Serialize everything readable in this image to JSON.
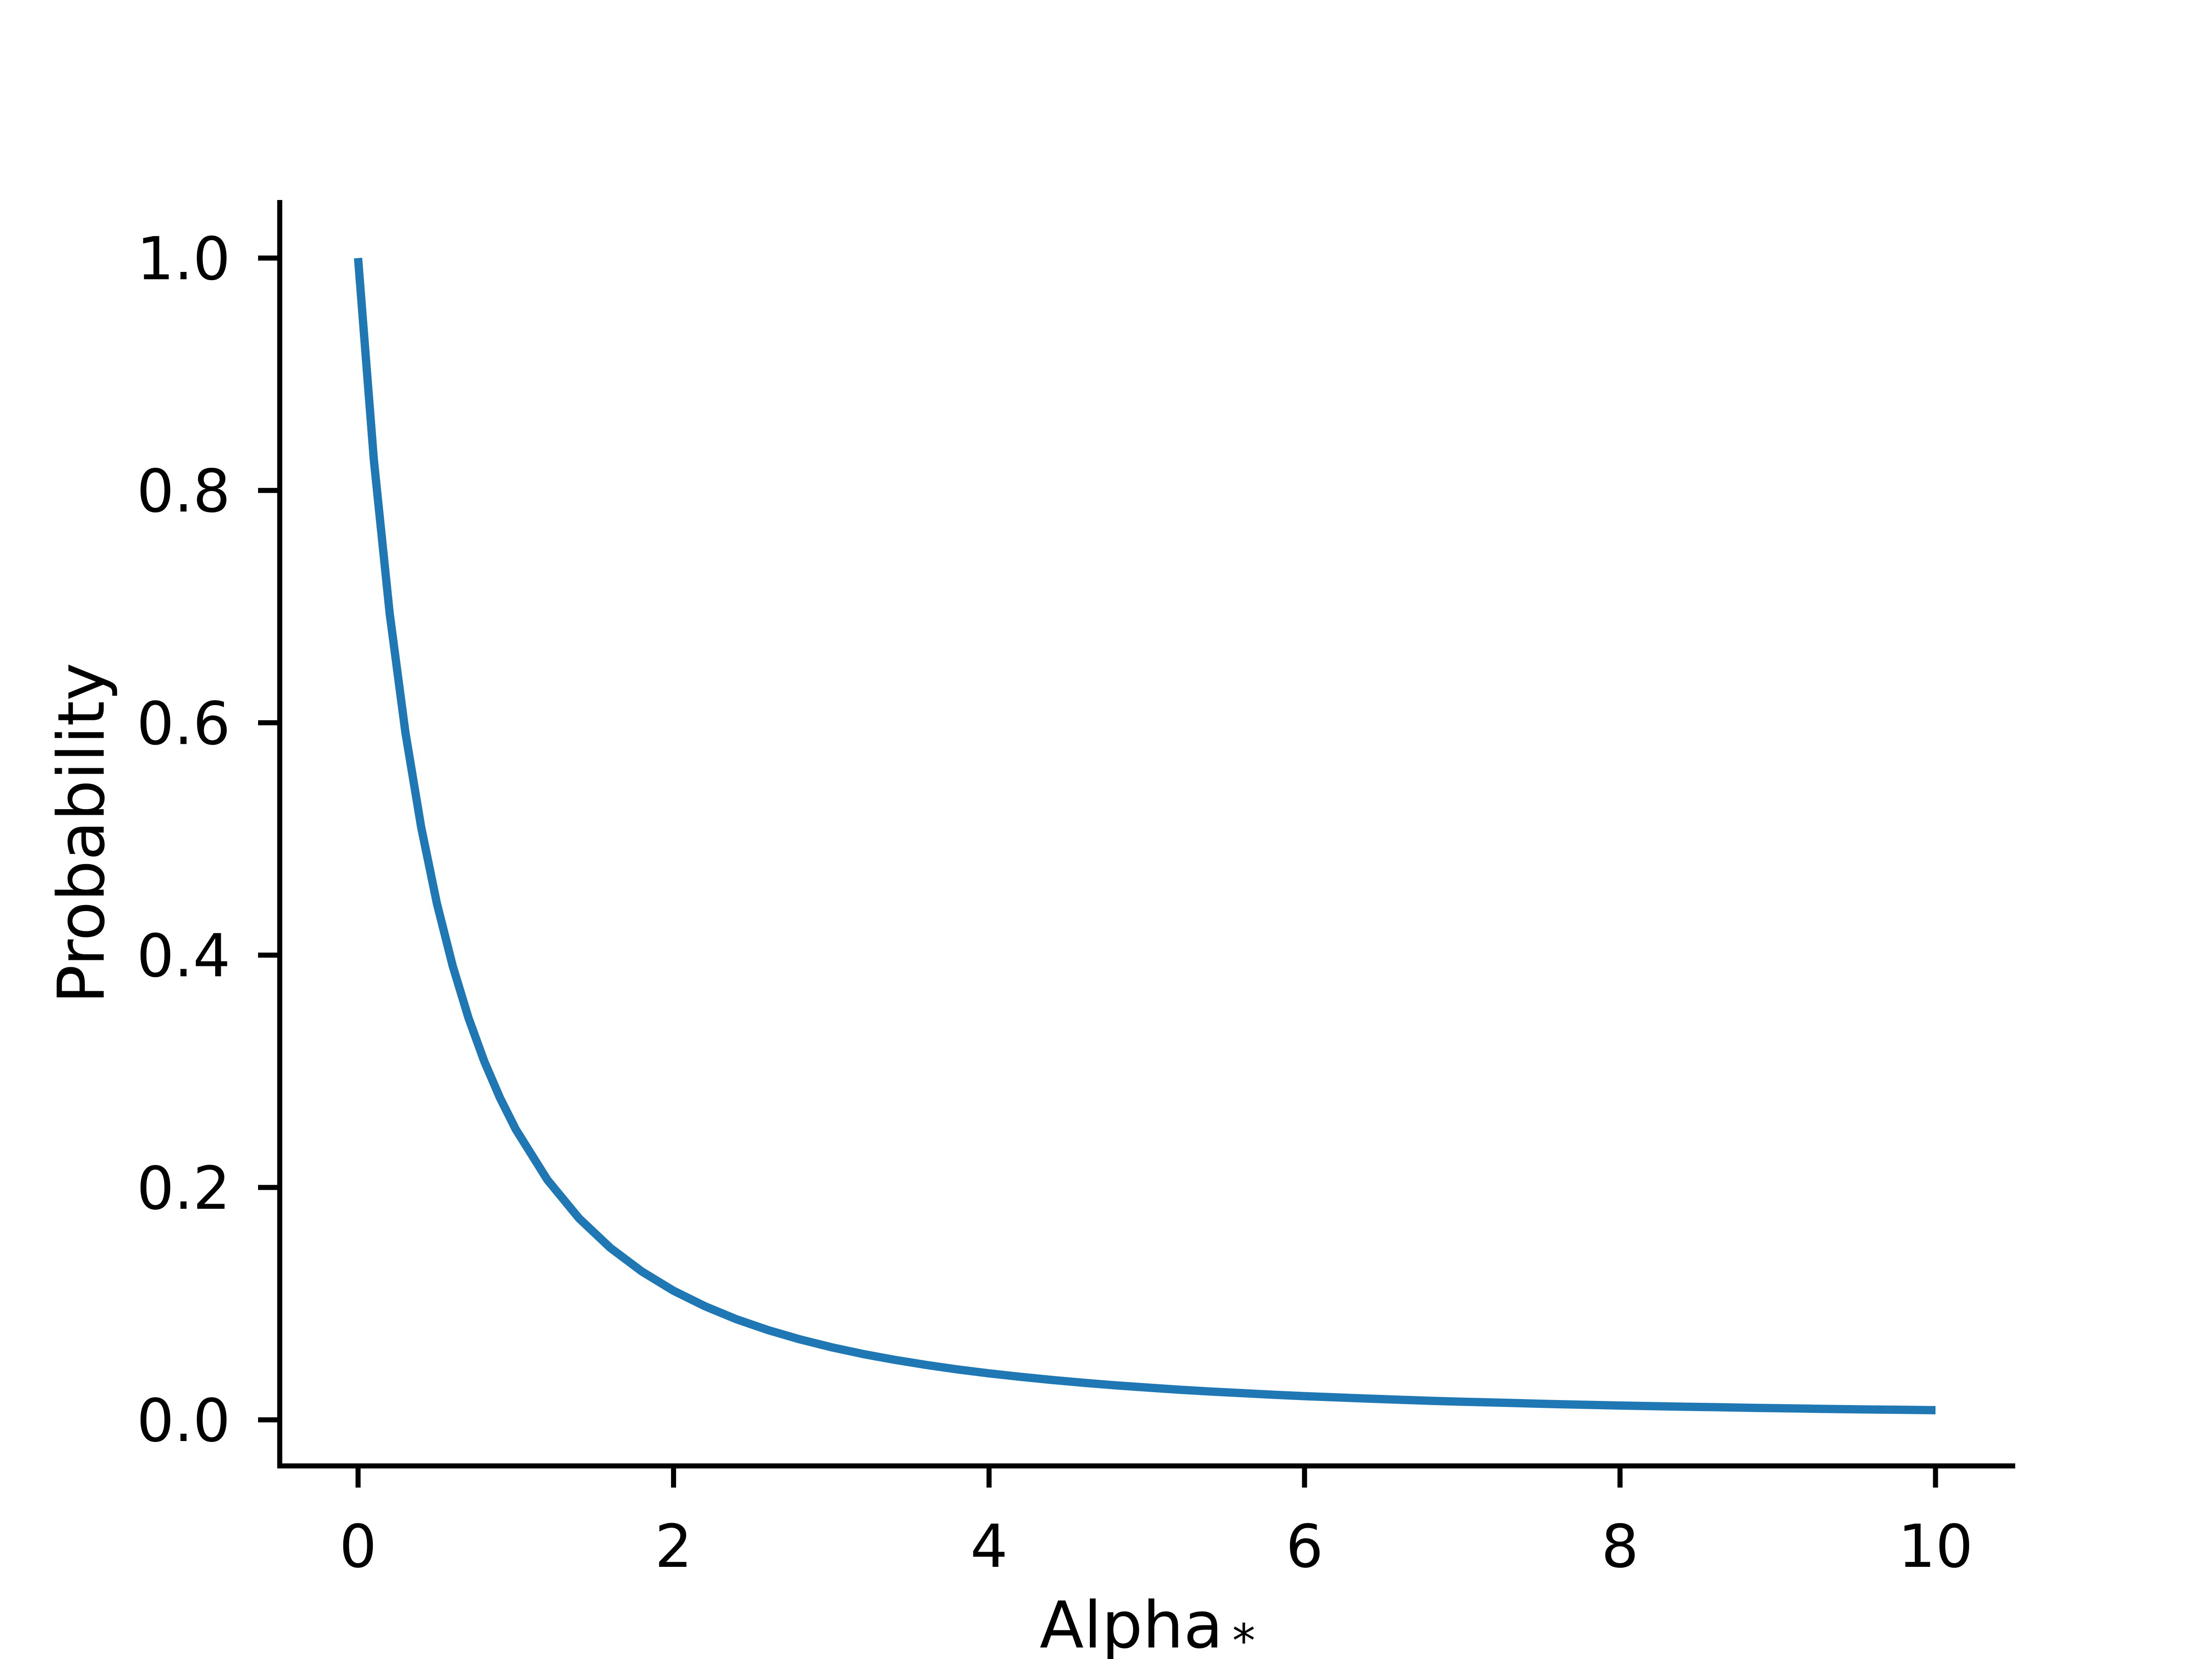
{
  "chart_data": {
    "type": "line",
    "title": "",
    "xlabel": "Alpha",
    "xlabel_subscript": "*",
    "ylabel": "Probability",
    "xlim": [
      -0.5,
      10.5
    ],
    "ylim": [
      -0.04,
      1.05
    ],
    "grid": false,
    "x_ticks": [
      "0",
      "2",
      "4",
      "6",
      "8",
      "10"
    ],
    "y_ticks": [
      "0.0",
      "0.2",
      "0.4",
      "0.6",
      "0.8",
      "1.0"
    ],
    "series": [
      {
        "color": "#1f77b4",
        "x": [
          0,
          0.1,
          0.2,
          0.3,
          0.4,
          0.5,
          0.6,
          0.7,
          0.8,
          0.9,
          1.0,
          1.2,
          1.4,
          1.6,
          1.8,
          2.0,
          2.2,
          2.4,
          2.6,
          2.8,
          3.0,
          3.2,
          3.4,
          3.6,
          3.8,
          4.0,
          4.2,
          4.4,
          4.6,
          4.8,
          5.0,
          5.2,
          5.4,
          5.6,
          5.8,
          6.0,
          6.2,
          6.4,
          6.6,
          6.8,
          7.0,
          7.2,
          7.4,
          7.6,
          7.8,
          8.0,
          8.2,
          8.4,
          8.6,
          8.8,
          9.0,
          9.2,
          9.4,
          9.6,
          9.8,
          10.0
        ],
        "y": [
          1.0,
          0.8264,
          0.6944,
          0.5917,
          0.5102,
          0.4444,
          0.3906,
          0.346,
          0.3086,
          0.277,
          0.25,
          0.2066,
          0.1736,
          0.1479,
          0.1276,
          0.1111,
          0.0977,
          0.0865,
          0.0772,
          0.0693,
          0.0625,
          0.0567,
          0.0517,
          0.0473,
          0.0434,
          0.04,
          0.037,
          0.0343,
          0.0319,
          0.0297,
          0.0278,
          0.026,
          0.0244,
          0.023,
          0.0216,
          0.0204,
          0.0193,
          0.0183,
          0.0173,
          0.0164,
          0.0156,
          0.0149,
          0.0142,
          0.0135,
          0.0129,
          0.0123,
          0.0118,
          0.0113,
          0.0109,
          0.0104,
          0.01,
          0.0096,
          0.0092,
          0.0089,
          0.0086,
          0.0083
        ]
      }
    ]
  }
}
